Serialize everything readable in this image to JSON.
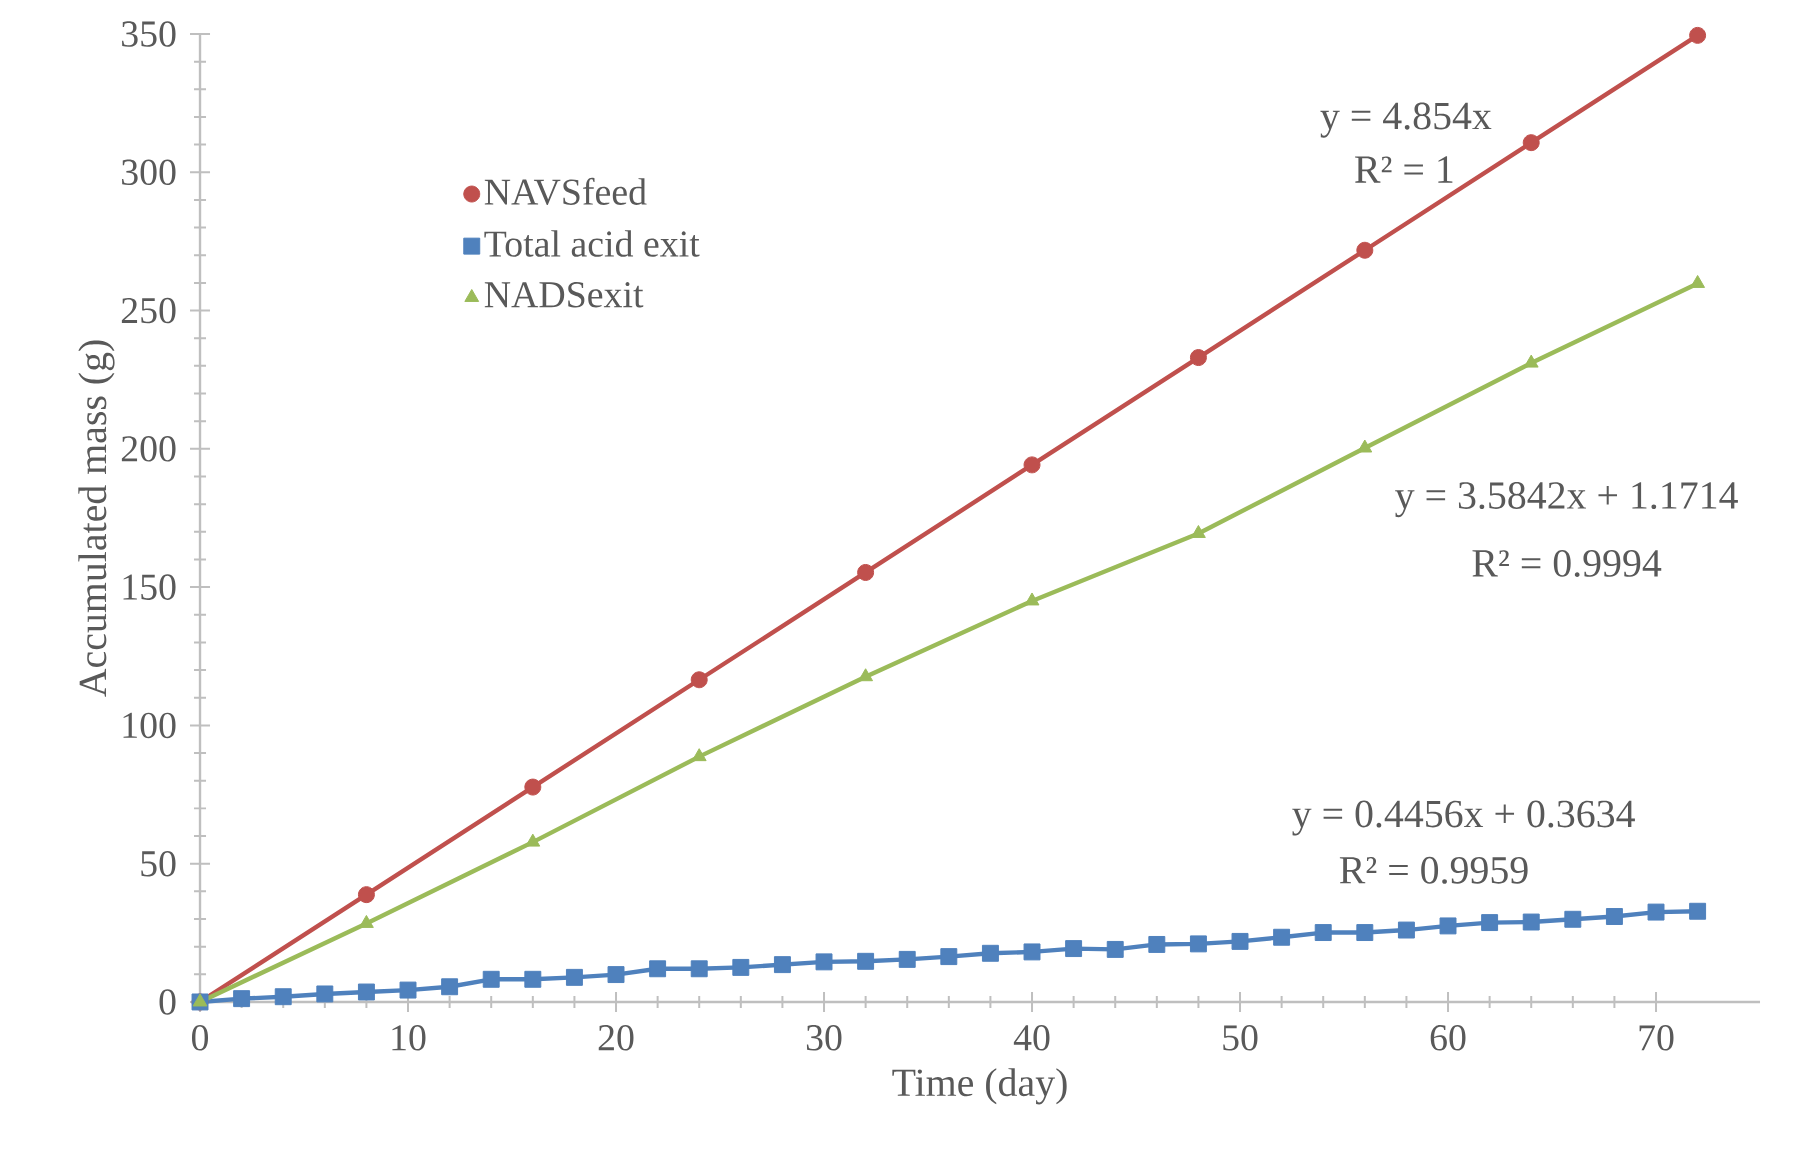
{
  "chart_data": {
    "type": "line",
    "xlabel": "Time (day)",
    "ylabel": "Accumulated mass (g)",
    "xlim": [
      0,
      75
    ],
    "xticks": [
      0,
      10,
      20,
      30,
      40,
      50,
      60,
      70
    ],
    "ylim": [
      0,
      350
    ],
    "yticks": [
      0,
      50,
      100,
      150,
      200,
      250,
      300,
      350
    ],
    "grid": false,
    "legend": "top left",
    "line_style": "solid",
    "series": [
      {
        "name": "NAVSfeed",
        "color": "#c0504d",
        "marker": "circle",
        "x": [
          0,
          8,
          16,
          24,
          32,
          40,
          48,
          56,
          64,
          72
        ],
        "values": [
          0,
          38.8,
          77.7,
          116.5,
          155.3,
          194.2,
          233.0,
          271.8,
          310.7,
          349.5
        ]
      },
      {
        "name": "Total acid exit",
        "color": "#4f81bd",
        "marker": "square",
        "x": [
          0,
          2,
          4,
          6,
          8,
          10,
          12,
          14,
          16,
          18,
          20,
          22,
          24,
          26,
          28,
          30,
          32,
          34,
          36,
          38,
          40,
          42,
          44,
          46,
          48,
          50,
          52,
          54,
          56,
          58,
          60,
          62,
          64,
          66,
          68,
          70,
          72
        ],
        "values": [
          0,
          1.2,
          1.9,
          2.9,
          3.6,
          4.3,
          5.5,
          8.2,
          8.2,
          8.9,
          9.9,
          12.0,
          12.0,
          12.5,
          13.5,
          14.5,
          14.7,
          15.4,
          16.4,
          17.6,
          18.1,
          19.3,
          19.0,
          20.8,
          21.0,
          21.9,
          23.4,
          25.1,
          25.1,
          26.0,
          27.5,
          28.7,
          28.9,
          29.9,
          30.9,
          32.5,
          32.8
        ]
      },
      {
        "name": "NADSexit",
        "color": "#9bbb59",
        "marker": "triangle",
        "x": [
          0,
          8,
          16,
          24,
          32,
          40,
          48,
          56,
          64,
          72
        ],
        "values": [
          0,
          28.4,
          57.8,
          88.7,
          117.6,
          145,
          169.4,
          200.3,
          231,
          259.8
        ]
      }
    ],
    "annotations": [
      "y = 4.854x",
      "R² = 1",
      "y = 3.5842x + 1.1714",
      "R² = 0.9994",
      "y = 0.4456x + 0.3634",
      "R² = 0.9959"
    ]
  }
}
